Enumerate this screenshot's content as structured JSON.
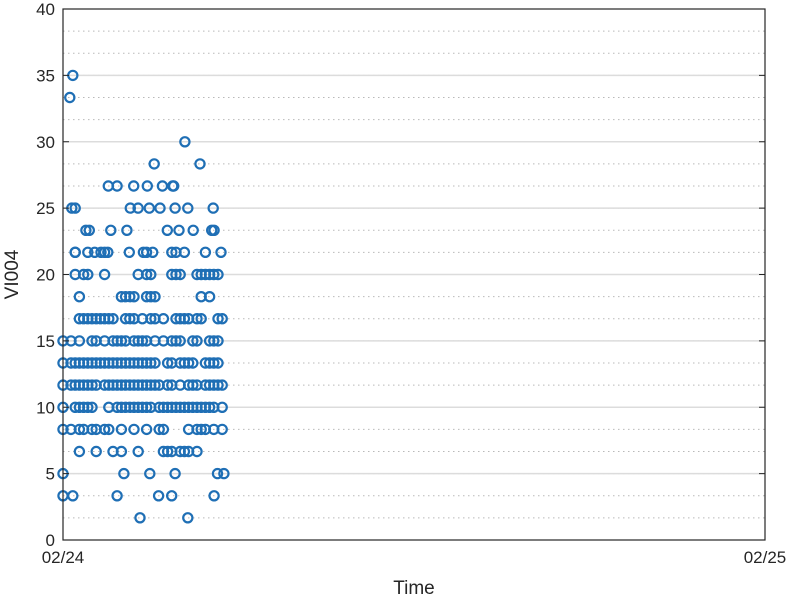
{
  "chart_data": {
    "type": "scatter",
    "title": "",
    "xlabel": "Time",
    "ylabel": "VI004",
    "xlim": [
      "02/24",
      "02/25"
    ],
    "ylim": [
      0,
      40
    ],
    "xticks": [
      "02/24",
      "02/25"
    ],
    "yticks": [
      0,
      5,
      10,
      15,
      20,
      25,
      30,
      35,
      40
    ],
    "grid": {
      "major": true,
      "minor": true,
      "minor_step": 1.6667
    },
    "marker": "open-circle",
    "color": "#1f6fb5",
    "levels": [
      1.67,
      3.33,
      5.0,
      6.67,
      8.33,
      10.0,
      11.67,
      13.33,
      15.0,
      16.67,
      18.33,
      20.0,
      21.67,
      23.33,
      25.0,
      26.67,
      28.33,
      30.0,
      33.33,
      35.0
    ],
    "series": [
      {
        "points": [
          [
            "00:00",
            5.0
          ],
          [
            "00:00",
            8.33
          ],
          [
            "00:00",
            10.0
          ],
          [
            "00:00",
            11.67
          ],
          [
            "00:00",
            13.33
          ],
          [
            "00:00",
            15.0
          ],
          [
            "00:00",
            3.33
          ],
          [
            "00:14",
            33.33
          ],
          [
            "00:20",
            35.0
          ],
          [
            "00:18",
            25.0
          ],
          [
            "00:25",
            25.0
          ],
          [
            "00:25",
            21.67
          ],
          [
            "00:20",
            3.33
          ],
          [
            "00:47",
            23.33
          ],
          [
            "00:54",
            23.33
          ],
          [
            "01:05",
            21.67
          ],
          [
            "01:18",
            21.67
          ],
          [
            "01:32",
            21.67
          ],
          [
            "01:38",
            23.33
          ],
          [
            "01:33",
            26.67
          ],
          [
            "01:51",
            26.67
          ],
          [
            "01:51",
            3.33
          ],
          [
            "02:05",
            5.0
          ],
          [
            "02:11",
            23.33
          ],
          [
            "02:18",
            25.0
          ],
          [
            "02:16",
            21.67
          ],
          [
            "02:25",
            26.67
          ],
          [
            "02:34",
            25.0
          ],
          [
            "02:38",
            1.67
          ],
          [
            "02:45",
            21.67
          ],
          [
            "02:53",
            26.67
          ],
          [
            "02:57",
            25.0
          ],
          [
            "02:58",
            5.0
          ],
          [
            "03:04",
            21.67
          ],
          [
            "03:07",
            28.33
          ],
          [
            "03:16",
            3.33
          ],
          [
            "03:19",
            25.0
          ],
          [
            "03:24",
            26.67
          ],
          [
            "03:34",
            23.33
          ],
          [
            "03:45",
            26.67
          ],
          [
            "03:47",
            26.67
          ],
          [
            "03:50",
            25.0
          ],
          [
            "03:58",
            23.33
          ],
          [
            "03:43",
            3.33
          ],
          [
            "03:50",
            5.0
          ],
          [
            "04:10",
            30.0
          ],
          [
            "04:16",
            25.0
          ],
          [
            "04:16",
            1.67
          ],
          [
            "04:27",
            23.33
          ],
          [
            "04:41",
            28.33
          ],
          [
            "05:05",
            23.33
          ],
          [
            "05:08",
            25.0
          ],
          [
            "05:10",
            23.33
          ],
          [
            "05:24",
            21.67
          ],
          [
            "05:10",
            3.33
          ],
          [
            "05:30",
            5.0
          ],
          [
            "05:17",
            5.0
          ]
        ]
      }
    ]
  }
}
